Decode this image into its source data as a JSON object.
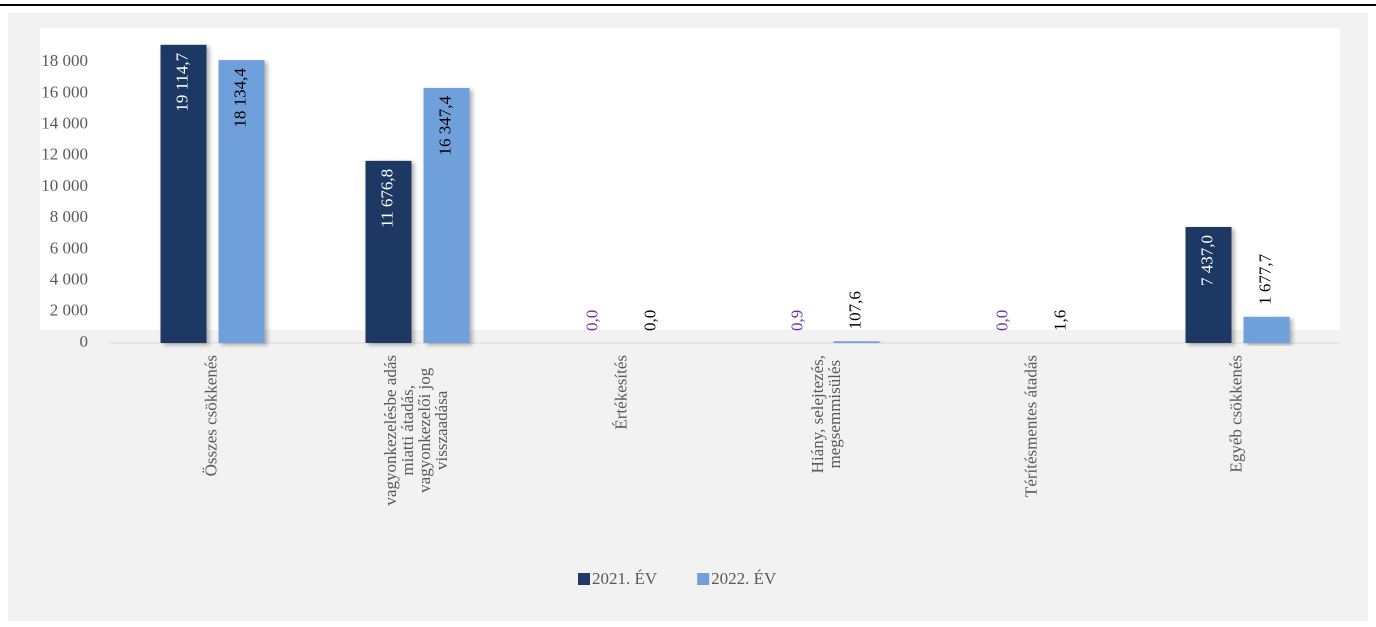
{
  "chart_data": {
    "type": "bar",
    "categories": [
      [
        "Összes csökkenés"
      ],
      [
        "vagyonkezelésbe adás",
        "miatti átadás,",
        "vagyonkezelői jog",
        "visszaadása"
      ],
      [
        "Értékesítés"
      ],
      [
        "Hiány, selejtezés,",
        "megsemmisülés"
      ],
      [
        "Térítésmentes átadás"
      ],
      [
        "Egyéb csökkenés"
      ]
    ],
    "series": [
      {
        "name": "2021. ÉV",
        "color": "#1f3864",
        "label_color": "#7030a0",
        "inside_label_color": "#ffffff",
        "values": [
          19114.7,
          11676.8,
          0,
          0.9,
          0,
          7437.0
        ],
        "value_labels": [
          "19 114,7",
          "11 676,8",
          "0,0",
          "0,9",
          "0,0",
          "7 437,0"
        ]
      },
      {
        "name": "2022. ÉV",
        "color": "#6fa0dc",
        "label_color": "#000000",
        "inside_label_color": "#000000",
        "values": [
          18134.4,
          16347.4,
          0,
          107.6,
          1.6,
          1677.7
        ],
        "value_labels": [
          "18 134,4",
          "16 347,4",
          "0,0",
          "107,6",
          "1,6",
          "1 677,7"
        ]
      }
    ],
    "ylim": [
      0,
      20000
    ],
    "yticks": [
      0,
      {
        "value": 2000,
        "label": "2 000"
      },
      {
        "value": 4000,
        "label": "4 000"
      },
      {
        "value": 6000,
        "label": "6 000"
      },
      {
        "value": 8000,
        "label": "8 000"
      },
      {
        "value": 10000,
        "label": "10 000"
      },
      {
        "value": 12000,
        "label": "12 000"
      },
      {
        "value": 14000,
        "label": "14 000"
      },
      {
        "value": 16000,
        "label": "16 000"
      },
      {
        "value": 18000,
        "label": "18 000"
      }
    ],
    "legend": "bottom"
  }
}
